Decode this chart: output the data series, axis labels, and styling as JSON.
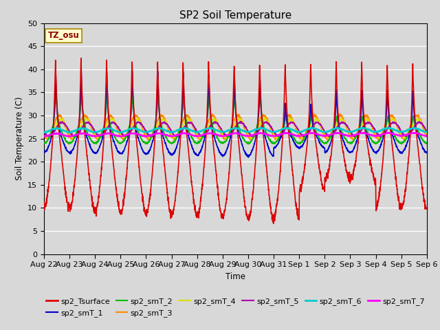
{
  "title": "SP2 Soil Temperature",
  "ylabel": "Soil Temperature (C)",
  "xlabel": "Time",
  "ylim": [
    0,
    50
  ],
  "yticks": [
    0,
    5,
    10,
    15,
    20,
    25,
    30,
    35,
    40,
    45,
    50
  ],
  "n_days": 15,
  "tz_label": "TZ_osu",
  "bg_color": "#d8d8d8",
  "series": {
    "sp2_Tsurface": {
      "color": "#dd0000",
      "lw": 1.2
    },
    "sp2_smT_1": {
      "color": "#0000cc",
      "lw": 1.2
    },
    "sp2_smT_2": {
      "color": "#00bb00",
      "lw": 1.2
    },
    "sp2_smT_3": {
      "color": "#ff8800",
      "lw": 1.2
    },
    "sp2_smT_4": {
      "color": "#dddd00",
      "lw": 1.2
    },
    "sp2_smT_5": {
      "color": "#aa00aa",
      "lw": 1.2
    },
    "sp2_smT_6": {
      "color": "#00cccc",
      "lw": 1.5
    },
    "sp2_smT_7": {
      "color": "#ff00ff",
      "lw": 1.5
    }
  },
  "x_tick_labels": [
    "Aug 22",
    "Aug 23",
    "Aug 24",
    "Aug 25",
    "Aug 26",
    "Aug 27",
    "Aug 28",
    "Aug 29",
    "Aug 30",
    "Aug 31",
    "Sep 1",
    "Sep 2",
    "Sep 3",
    "Sep 4",
    "Sep 5",
    "Sep 6"
  ]
}
